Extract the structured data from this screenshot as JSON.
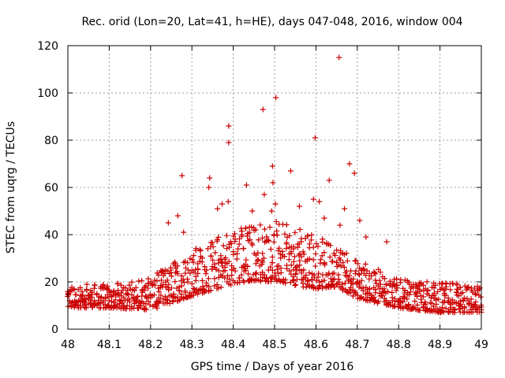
{
  "chart_data": {
    "type": "scatter",
    "title": "Rec. orid (Lon=20, Lat=41, h=HE), days 047-048, 2016, window 004",
    "xlabel": "GPS time / Days of year 2016",
    "ylabel": "STEC from uqrg / TECUs",
    "xlim": [
      48,
      49
    ],
    "ylim": [
      0,
      120
    ],
    "xticks": [
      "48",
      "48.1",
      "48.2",
      "48.3",
      "48.4",
      "48.5",
      "48.6",
      "48.7",
      "48.8",
      "48.9",
      "49"
    ],
    "yticks": [
      "0",
      "20",
      "40",
      "60",
      "80",
      "100",
      "120"
    ],
    "grid": true,
    "marker": "+",
    "marker_color": "#cc0000",
    "outliers": [
      {
        "x": 48.656,
        "y": 115
      },
      {
        "x": 48.503,
        "y": 98
      },
      {
        "x": 48.472,
        "y": 93
      },
      {
        "x": 48.389,
        "y": 86
      },
      {
        "x": 48.598,
        "y": 81
      },
      {
        "x": 48.389,
        "y": 79
      },
      {
        "x": 48.681,
        "y": 70
      },
      {
        "x": 48.495,
        "y": 69
      },
      {
        "x": 48.539,
        "y": 67
      },
      {
        "x": 48.693,
        "y": 66
      },
      {
        "x": 48.276,
        "y": 65
      },
      {
        "x": 48.343,
        "y": 64
      },
      {
        "x": 48.632,
        "y": 63
      },
      {
        "x": 48.432,
        "y": 61
      },
      {
        "x": 48.496,
        "y": 62
      },
      {
        "x": 48.341,
        "y": 60
      },
      {
        "x": 48.475,
        "y": 57
      },
      {
        "x": 48.594,
        "y": 55
      },
      {
        "x": 48.608,
        "y": 54
      },
      {
        "x": 48.388,
        "y": 54
      },
      {
        "x": 48.373,
        "y": 53
      },
      {
        "x": 48.502,
        "y": 53
      },
      {
        "x": 48.56,
        "y": 52
      },
      {
        "x": 48.669,
        "y": 51
      },
      {
        "x": 48.362,
        "y": 51
      },
      {
        "x": 48.446,
        "y": 50
      },
      {
        "x": 48.493,
        "y": 50
      },
      {
        "x": 48.266,
        "y": 48
      },
      {
        "x": 48.658,
        "y": 44
      },
      {
        "x": 48.706,
        "y": 46
      },
      {
        "x": 48.243,
        "y": 45
      },
      {
        "x": 48.721,
        "y": 39
      },
      {
        "x": 48.771,
        "y": 37
      },
      {
        "x": 48.28,
        "y": 41
      },
      {
        "x": 48.62,
        "y": 47
      }
    ],
    "band": {
      "description_free": true,
      "x_step": 0.005,
      "lower_envelope": [
        [
          48.0,
          9
        ],
        [
          48.1,
          9
        ],
        [
          48.2,
          8
        ],
        [
          48.3,
          14
        ],
        [
          48.4,
          19
        ],
        [
          48.45,
          20.5
        ],
        [
          48.5,
          20
        ],
        [
          48.6,
          17
        ],
        [
          48.65,
          18
        ],
        [
          48.7,
          13
        ],
        [
          48.8,
          9
        ],
        [
          48.9,
          7
        ],
        [
          49.0,
          7
        ]
      ],
      "upper_envelope": [
        [
          48.0,
          19
        ],
        [
          48.1,
          19
        ],
        [
          48.2,
          22
        ],
        [
          48.3,
          34
        ],
        [
          48.4,
          43
        ],
        [
          48.45,
          45
        ],
        [
          48.5,
          46
        ],
        [
          48.6,
          40
        ],
        [
          48.65,
          35
        ],
        [
          48.7,
          30
        ],
        [
          48.8,
          21
        ],
        [
          48.9,
          20
        ],
        [
          49.0,
          19
        ]
      ]
    }
  }
}
